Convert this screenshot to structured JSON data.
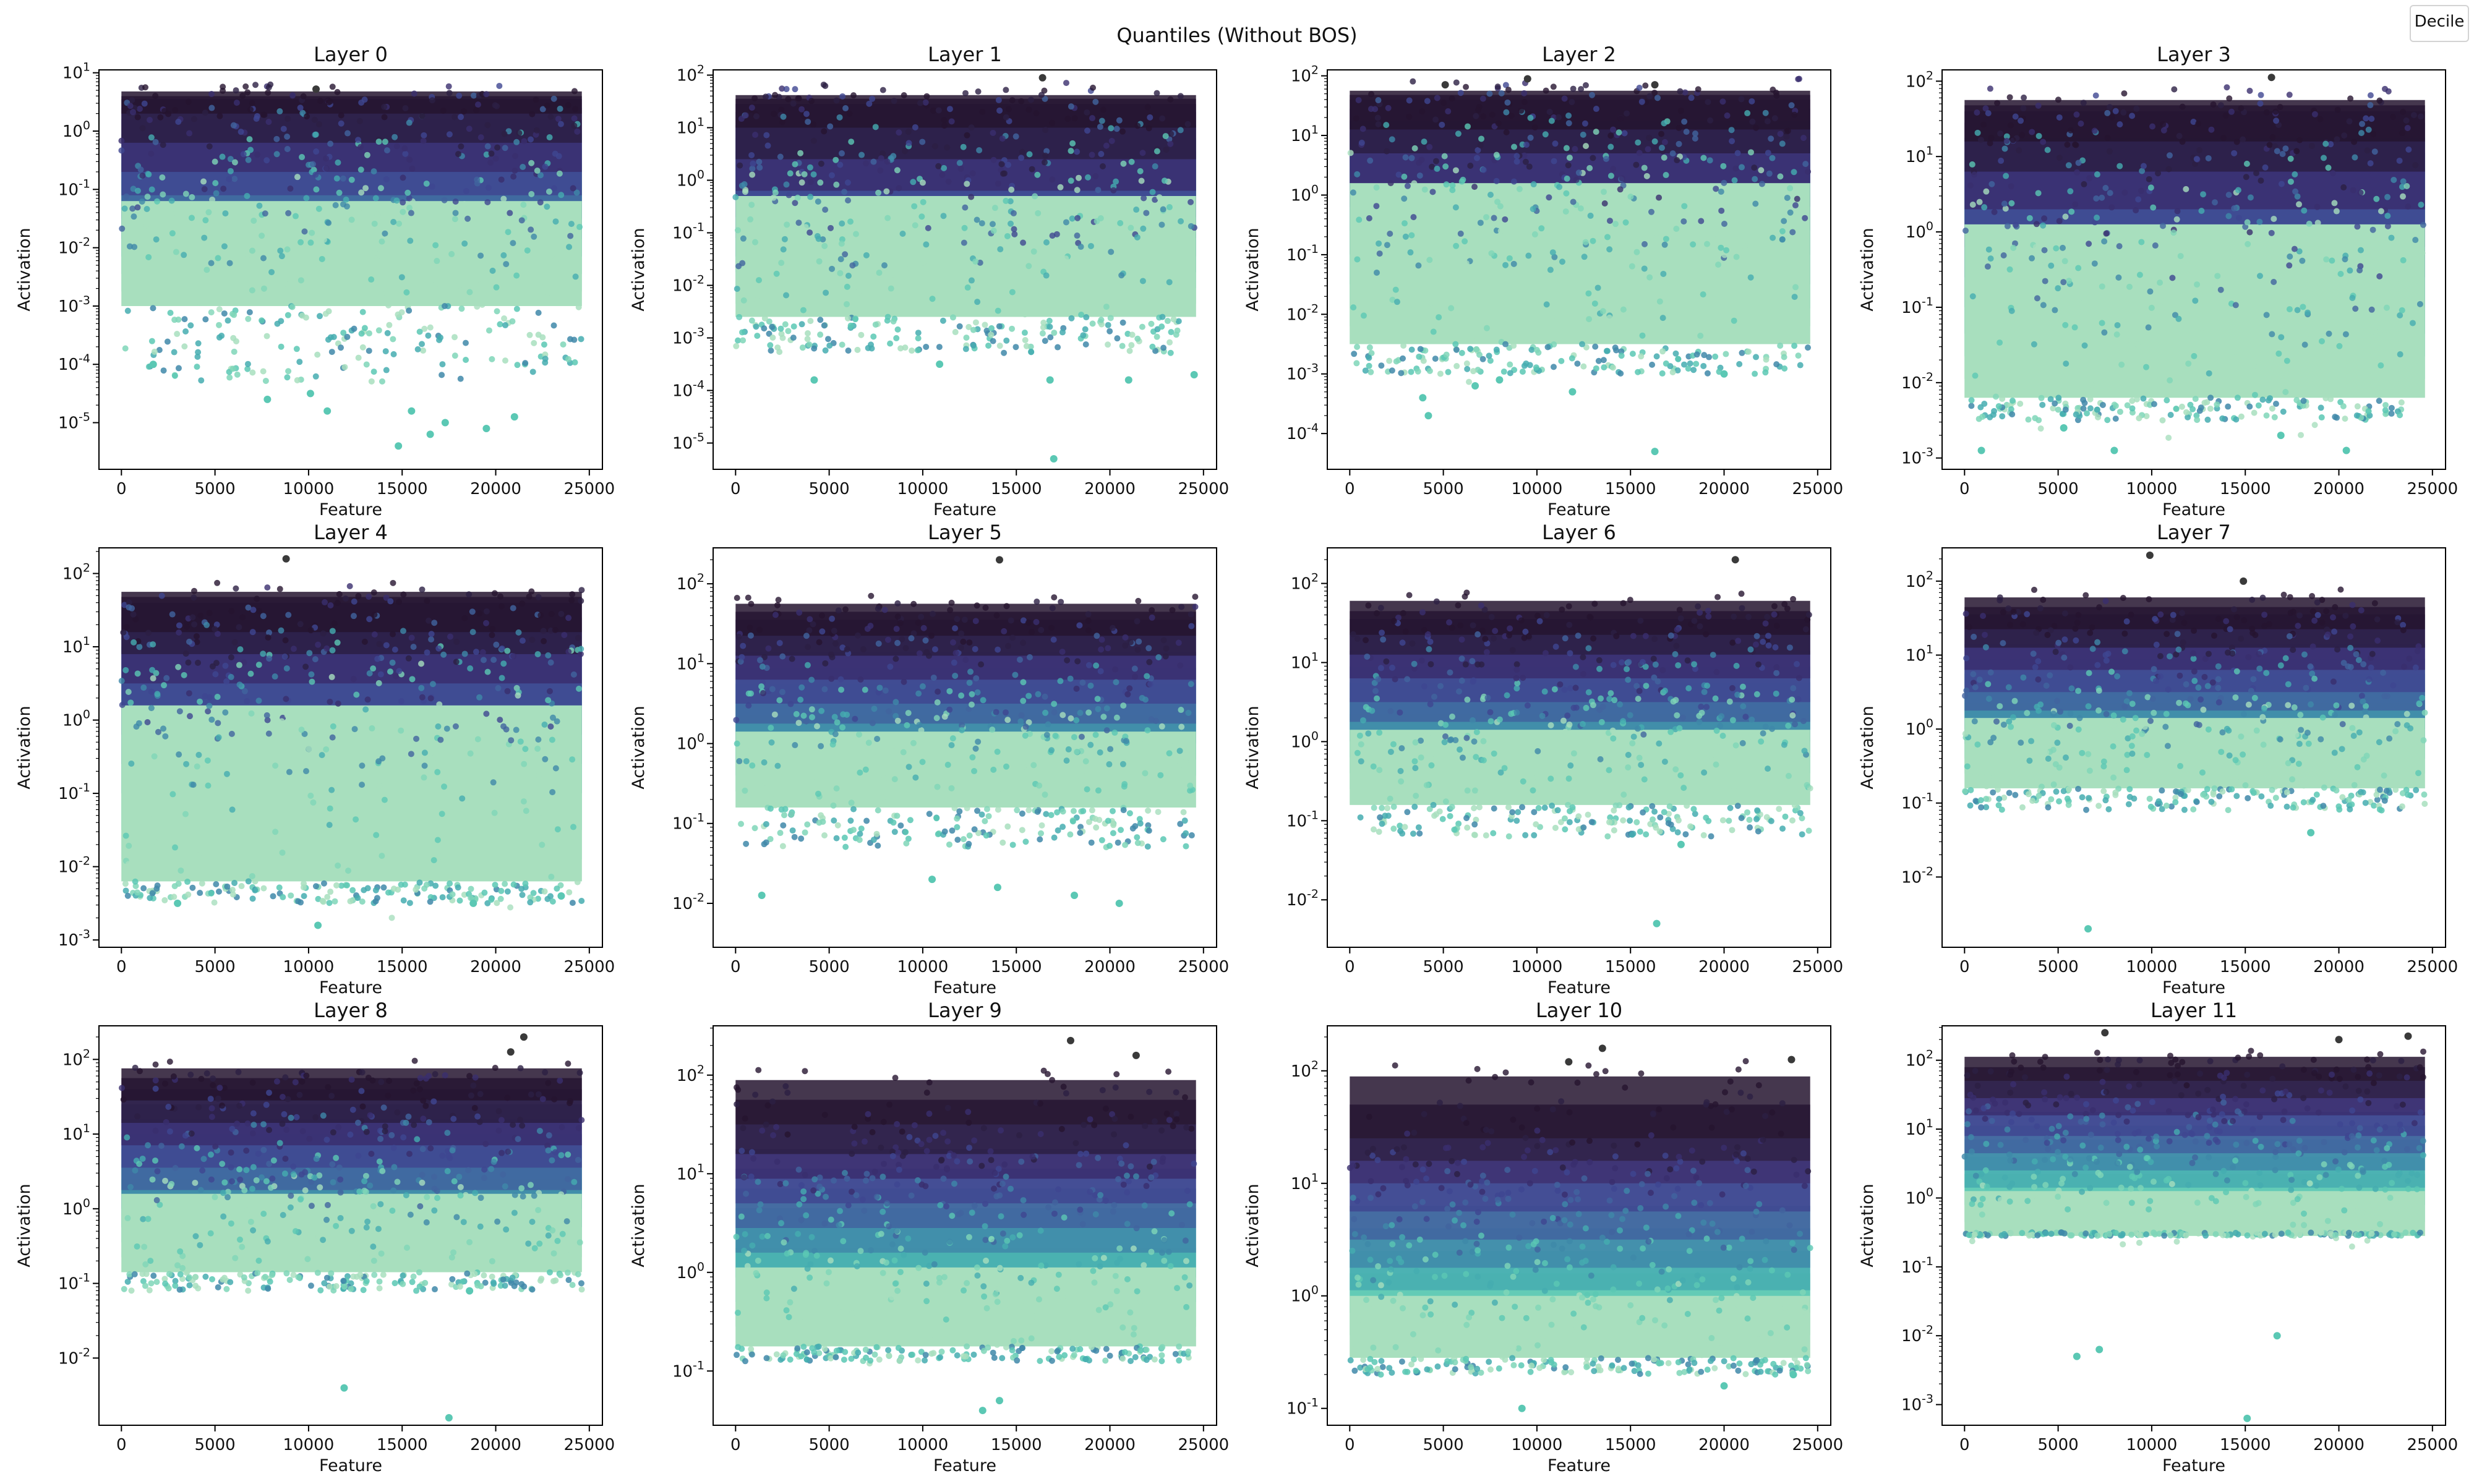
{
  "figure": {
    "suptitle": "Quantiles (Without BOS)",
    "legend_title": "Decile"
  },
  "colors": {
    "deciles": [
      "#a8dfbe",
      "#7fd6b8",
      "#5bc8b4",
      "#45adb0",
      "#3f88a9",
      "#41649f",
      "#3f4691",
      "#3a2e6e",
      "#2c1f44",
      "#25142f"
    ],
    "axes_edge": "#000000",
    "background": "#ffffff"
  },
  "chart_data": [
    {
      "type": "scatter",
      "title": "Layer 0",
      "xlabel": "Feature",
      "ylabel": "Activation",
      "yscale": "log",
      "xlim": [
        -1200,
        25700
      ],
      "xticks": [
        0,
        5000,
        10000,
        15000,
        20000,
        25000
      ],
      "xtick_labels": [
        "0",
        "5000",
        "10000",
        "15000",
        "20000",
        "25000"
      ],
      "ylim_exp": [
        -5.8,
        1.05
      ],
      "ytick_exps": [
        -5,
        -4,
        -3,
        -2,
        -1,
        0,
        1
      ],
      "ytick_labels": [
        "10^-5",
        "10^-4",
        "10^-3",
        "10^-2",
        "10^-1",
        "10^0",
        "10^1"
      ],
      "band_low_exp": [
        -3.0,
        -2.75,
        -2.45,
        -2.15,
        -1.85,
        -1.5,
        -1.1,
        -0.7,
        -0.2,
        0.3
      ],
      "band_high_exp": [
        -1.2,
        -0.85,
        -0.55,
        -0.3,
        -0.05,
        0.2,
        0.4,
        0.55,
        0.6,
        0.68
      ],
      "floor_exp": -4.3,
      "ceiling_exp": 0.7,
      "outliers_high": [
        [
          10400,
          0.72
        ]
      ],
      "outliers_low": [
        [
          1700,
          -4.0
        ],
        [
          7800,
          -4.6
        ],
        [
          10100,
          -4.5
        ],
        [
          11000,
          -4.8
        ],
        [
          14800,
          -5.4
        ],
        [
          15500,
          -4.8
        ],
        [
          16500,
          -5.2
        ],
        [
          17300,
          -5.0
        ],
        [
          19500,
          -5.1
        ],
        [
          21000,
          -4.9
        ]
      ]
    },
    {
      "type": "scatter",
      "title": "Layer 1",
      "xlabel": "Feature",
      "ylabel": "Activation",
      "yscale": "log",
      "xlim": [
        -1200,
        25700
      ],
      "xticks": [
        0,
        5000,
        10000,
        15000,
        20000,
        25000
      ],
      "xtick_labels": [
        "0",
        "5000",
        "10000",
        "15000",
        "20000",
        "25000"
      ],
      "ylim_exp": [
        -5.5,
        2.1
      ],
      "ytick_exps": [
        -5,
        -4,
        -3,
        -2,
        -1,
        0,
        1,
        2
      ],
      "ytick_labels": [
        "10^-5",
        "10^-4",
        "10^-3",
        "10^-2",
        "10^-1",
        "10^0",
        "10^1",
        "10^2"
      ],
      "band_low_exp": [
        -2.6,
        -2.35,
        -2.05,
        -1.75,
        -1.45,
        -1.1,
        -0.7,
        -0.2,
        0.4,
        1.0
      ],
      "band_high_exp": [
        -0.3,
        0.0,
        0.3,
        0.55,
        0.8,
        1.05,
        1.3,
        1.45,
        1.55,
        1.62
      ],
      "floor_exp": -3.3,
      "ceiling_exp": 1.65,
      "outliers_high": [
        [
          16400,
          1.95
        ]
      ],
      "outliers_low": [
        [
          4200,
          -3.8
        ],
        [
          10900,
          -3.5
        ],
        [
          16800,
          -3.8
        ],
        [
          17000,
          -5.3
        ],
        [
          21000,
          -3.8
        ],
        [
          24500,
          -3.7
        ]
      ]
    },
    {
      "type": "scatter",
      "title": "Layer 2",
      "xlabel": "Feature",
      "ylabel": "Activation",
      "yscale": "log",
      "xlim": [
        -1200,
        25700
      ],
      "xticks": [
        0,
        5000,
        10000,
        15000,
        20000,
        25000
      ],
      "xtick_labels": [
        "0",
        "5000",
        "10000",
        "15000",
        "20000",
        "25000"
      ],
      "ylim_exp": [
        -4.6,
        2.1
      ],
      "ytick_exps": [
        -4,
        -3,
        -2,
        -1,
        0,
        1,
        2
      ],
      "ytick_labels": [
        "10^-4",
        "10^-3",
        "10^-2",
        "10^-1",
        "10^0",
        "10^1",
        "10^2"
      ],
      "band_low_exp": [
        -2.5,
        -2.2,
        -1.9,
        -1.5,
        -1.0,
        -0.6,
        -0.2,
        0.2,
        0.7,
        1.1
      ],
      "band_high_exp": [
        0.2,
        0.45,
        0.65,
        0.85,
        1.05,
        1.25,
        1.45,
        1.6,
        1.68,
        1.75
      ],
      "floor_exp": -3.0,
      "ceiling_exp": 1.75,
      "outliers_high": [
        [
          9500,
          1.95
        ],
        [
          5100,
          1.85
        ],
        [
          16300,
          1.85
        ]
      ],
      "outliers_low": [
        [
          3900,
          -3.4
        ],
        [
          4200,
          -3.7
        ],
        [
          6700,
          -3.2
        ],
        [
          8000,
          -3.1
        ],
        [
          11900,
          -3.3
        ],
        [
          16300,
          -4.3
        ],
        [
          20000,
          -3.0
        ]
      ]
    },
    {
      "type": "scatter",
      "title": "Layer 3",
      "xlabel": "Feature",
      "ylabel": "Activation",
      "yscale": "log",
      "xlim": [
        -1200,
        25700
      ],
      "xticks": [
        0,
        5000,
        10000,
        15000,
        20000,
        25000
      ],
      "xtick_labels": [
        "0",
        "5000",
        "10000",
        "15000",
        "20000",
        "25000"
      ],
      "ylim_exp": [
        -3.15,
        2.15
      ],
      "ytick_exps": [
        -3,
        -2,
        -1,
        0,
        1,
        2
      ],
      "ytick_labels": [
        "10^-3",
        "10^-2",
        "10^-1",
        "10^0",
        "10^1",
        "10^2"
      ],
      "band_low_exp": [
        -2.2,
        -1.95,
        -1.65,
        -1.35,
        -1.0,
        -0.6,
        -0.2,
        0.3,
        0.8,
        1.2
      ],
      "band_high_exp": [
        0.1,
        0.35,
        0.6,
        0.85,
        1.05,
        1.25,
        1.45,
        1.6,
        1.68,
        1.75
      ],
      "floor_exp": -2.5,
      "ceiling_exp": 1.75,
      "outliers_high": [
        [
          16400,
          2.05
        ]
      ],
      "outliers_low": [
        [
          900,
          -2.9
        ],
        [
          5300,
          -2.6
        ],
        [
          8000,
          -2.9
        ],
        [
          16900,
          -2.7
        ],
        [
          20400,
          -2.9
        ]
      ]
    },
    {
      "type": "scatter",
      "title": "Layer 4",
      "xlabel": "Feature",
      "ylabel": "Activation",
      "yscale": "log",
      "xlim": [
        -1200,
        25700
      ],
      "xticks": [
        0,
        5000,
        10000,
        15000,
        20000,
        25000
      ],
      "xtick_labels": [
        "0",
        "5000",
        "10000",
        "15000",
        "20000",
        "25000"
      ],
      "ylim_exp": [
        -3.1,
        2.35
      ],
      "ytick_exps": [
        -3,
        -2,
        -1,
        0,
        1,
        2
      ],
      "ytick_labels": [
        "10^-3",
        "10^-2",
        "10^-1",
        "10^0",
        "10^1",
        "10^2"
      ],
      "band_low_exp": [
        -2.2,
        -1.9,
        -1.5,
        -1.0,
        -0.6,
        -0.2,
        0.2,
        0.5,
        0.9,
        1.2
      ],
      "band_high_exp": [
        0.2,
        0.4,
        0.6,
        0.8,
        1.0,
        1.2,
        1.4,
        1.6,
        1.68,
        1.75
      ],
      "floor_exp": -2.5,
      "ceiling_exp": 1.78,
      "outliers_high": [
        [
          8800,
          2.2
        ]
      ],
      "outliers_low": [
        [
          3000,
          -2.5
        ],
        [
          10500,
          -2.8
        ],
        [
          18800,
          -2.5
        ],
        [
          23500,
          -2.4
        ]
      ]
    },
    {
      "type": "scatter",
      "title": "Layer 5",
      "xlabel": "Feature",
      "ylabel": "Activation",
      "yscale": "log",
      "xlim": [
        -1200,
        25700
      ],
      "xticks": [
        0,
        5000,
        10000,
        15000,
        20000,
        25000
      ],
      "xtick_labels": [
        "0",
        "5000",
        "10000",
        "15000",
        "20000",
        "25000"
      ],
      "ylim_exp": [
        -2.55,
        2.45
      ],
      "ytick_exps": [
        -2,
        -1,
        0,
        1,
        2
      ],
      "ytick_labels": [
        "10^-2",
        "10^-1",
        "10^0",
        "10^1",
        "10^2"
      ],
      "band_low_exp": [
        -0.8,
        -0.6,
        -0.4,
        -0.2,
        0.0,
        0.25,
        0.5,
        0.8,
        1.1,
        1.35
      ],
      "band_high_exp": [
        0.15,
        0.35,
        0.55,
        0.75,
        0.95,
        1.15,
        1.35,
        1.55,
        1.65,
        1.75
      ],
      "floor_exp": -1.3,
      "ceiling_exp": 1.8,
      "outliers_high": [
        [
          14100,
          2.3
        ]
      ],
      "outliers_low": [
        [
          1400,
          -1.9
        ],
        [
          10500,
          -1.7
        ],
        [
          14000,
          -1.8
        ],
        [
          18100,
          -1.9
        ],
        [
          20500,
          -2.0
        ]
      ]
    },
    {
      "type": "scatter",
      "title": "Layer 6",
      "xlabel": "Feature",
      "ylabel": "Activation",
      "yscale": "log",
      "xlim": [
        -1200,
        25700
      ],
      "xticks": [
        0,
        5000,
        10000,
        15000,
        20000,
        25000
      ],
      "xtick_labels": [
        "0",
        "5000",
        "10000",
        "15000",
        "20000",
        "25000"
      ],
      "ylim_exp": [
        -2.6,
        2.45
      ],
      "ytick_exps": [
        -2,
        -1,
        0,
        1,
        2
      ],
      "ytick_labels": [
        "10^-2",
        "10^-1",
        "10^0",
        "10^1",
        "10^2"
      ],
      "band_low_exp": [
        -0.8,
        -0.6,
        -0.4,
        -0.2,
        0.0,
        0.25,
        0.5,
        0.8,
        1.1,
        1.35
      ],
      "band_high_exp": [
        0.15,
        0.35,
        0.55,
        0.75,
        0.95,
        1.15,
        1.35,
        1.55,
        1.65,
        1.78
      ],
      "floor_exp": -1.2,
      "ceiling_exp": 1.85,
      "outliers_high": [
        [
          20600,
          2.3
        ]
      ],
      "outliers_low": [
        [
          16400,
          -2.3
        ],
        [
          17700,
          -1.3
        ]
      ]
    },
    {
      "type": "scatter",
      "title": "Layer 7",
      "xlabel": "Feature",
      "ylabel": "Activation",
      "yscale": "log",
      "xlim": [
        -1200,
        25700
      ],
      "xticks": [
        0,
        5000,
        10000,
        15000,
        20000,
        25000
      ],
      "xtick_labels": [
        "0",
        "5000",
        "10000",
        "15000",
        "20000",
        "25000"
      ],
      "ylim_exp": [
        -2.95,
        2.45
      ],
      "ytick_exps": [
        -2,
        -1,
        0,
        1,
        2
      ],
      "ytick_labels": [
        "10^-2",
        "10^-1",
        "10^0",
        "10^1",
        "10^2"
      ],
      "band_low_exp": [
        -0.8,
        -0.6,
        -0.4,
        -0.2,
        0.0,
        0.25,
        0.5,
        0.8,
        1.1,
        1.35
      ],
      "band_high_exp": [
        0.15,
        0.35,
        0.55,
        0.75,
        0.95,
        1.15,
        1.35,
        1.55,
        1.65,
        1.78
      ],
      "floor_exp": -1.1,
      "ceiling_exp": 1.85,
      "outliers_high": [
        [
          9900,
          2.35
        ],
        [
          14900,
          2.0
        ]
      ],
      "outliers_low": [
        [
          6600,
          -2.7
        ],
        [
          18500,
          -1.4
        ]
      ]
    },
    {
      "type": "scatter",
      "title": "Layer 8",
      "xlabel": "Feature",
      "ylabel": "Activation",
      "yscale": "log",
      "xlim": [
        -1200,
        25700
      ],
      "xticks": [
        0,
        5000,
        10000,
        15000,
        20000,
        25000
      ],
      "xtick_labels": [
        "0",
        "5000",
        "10000",
        "15000",
        "20000",
        "25000"
      ],
      "ylim_exp": [
        -2.9,
        2.45
      ],
      "ytick_exps": [
        -2,
        -1,
        0,
        1,
        2
      ],
      "ytick_labels": [
        "10^-2",
        "10^-1",
        "10^0",
        "10^1",
        "10^2"
      ],
      "band_low_exp": [
        -0.85,
        -0.65,
        -0.45,
        -0.25,
        0.0,
        0.25,
        0.55,
        0.85,
        1.15,
        1.45
      ],
      "band_high_exp": [
        0.2,
        0.4,
        0.6,
        0.8,
        1.0,
        1.2,
        1.4,
        1.6,
        1.75,
        1.88
      ],
      "floor_exp": -1.1,
      "ceiling_exp": 1.95,
      "outliers_high": [
        [
          21500,
          2.3
        ],
        [
          20800,
          2.1
        ]
      ],
      "outliers_low": [
        [
          11900,
          -2.4
        ],
        [
          17500,
          -2.8
        ],
        [
          18600,
          -1.1
        ]
      ]
    },
    {
      "type": "scatter",
      "title": "Layer 9",
      "xlabel": "Feature",
      "ylabel": "Activation",
      "yscale": "log",
      "xlim": [
        -1200,
        25700
      ],
      "xticks": [
        0,
        5000,
        10000,
        15000,
        20000,
        25000
      ],
      "xtick_labels": [
        "0",
        "5000",
        "10000",
        "15000",
        "20000",
        "25000"
      ],
      "ylim_exp": [
        -1.55,
        2.5
      ],
      "ytick_exps": [
        -1,
        0,
        1,
        2
      ],
      "ytick_labels": [
        "10^-1",
        "10^0",
        "10^1",
        "10^2"
      ],
      "band_low_exp": [
        -0.75,
        -0.55,
        -0.3,
        -0.05,
        0.2,
        0.45,
        0.7,
        0.95,
        1.2,
        1.5
      ],
      "band_high_exp": [
        0.05,
        0.25,
        0.45,
        0.65,
        0.85,
        1.05,
        1.25,
        1.5,
        1.75,
        1.95
      ],
      "floor_exp": -0.9,
      "ceiling_exp": 2.0,
      "outliers_high": [
        [
          17900,
          2.35
        ],
        [
          21400,
          2.2
        ]
      ],
      "outliers_low": [
        [
          13200,
          -1.4
        ],
        [
          14100,
          -1.3
        ]
      ]
    },
    {
      "type": "scatter",
      "title": "Layer 10",
      "xlabel": "Feature",
      "ylabel": "Activation",
      "yscale": "log",
      "xlim": [
        -1200,
        25700
      ],
      "xticks": [
        0,
        5000,
        10000,
        15000,
        20000,
        25000
      ],
      "xtick_labels": [
        "0",
        "5000",
        "10000",
        "15000",
        "20000",
        "25000"
      ],
      "ylim_exp": [
        -1.15,
        2.4
      ],
      "ytick_exps": [
        -1,
        0,
        1,
        2
      ],
      "ytick_labels": [
        "10^-1",
        "10^0",
        "10^1",
        "10^2"
      ],
      "band_low_exp": [
        -0.55,
        -0.35,
        -0.15,
        0.05,
        0.25,
        0.5,
        0.75,
        1.0,
        1.2,
        1.4
      ],
      "band_high_exp": [
        0.0,
        0.2,
        0.4,
        0.6,
        0.8,
        1.0,
        1.2,
        1.4,
        1.7,
        1.95
      ],
      "floor_exp": -0.7,
      "ceiling_exp": 2.0,
      "outliers_high": [
        [
          13500,
          2.2
        ],
        [
          11700,
          2.08
        ],
        [
          23600,
          2.1
        ]
      ],
      "outliers_low": [
        [
          9200,
          -1.0
        ],
        [
          20000,
          -0.8
        ],
        [
          23700,
          -0.7
        ]
      ]
    },
    {
      "type": "scatter",
      "title": "Layer 11",
      "xlabel": "Feature",
      "ylabel": "Activation",
      "yscale": "log",
      "xlim": [
        -1200,
        25700
      ],
      "xticks": [
        0,
        5000,
        10000,
        15000,
        20000,
        25000
      ],
      "xtick_labels": [
        "0",
        "5000",
        "10000",
        "15000",
        "20000",
        "25000"
      ],
      "ylim_exp": [
        -3.3,
        2.5
      ],
      "ytick_exps": [
        -3,
        -2,
        -1,
        0,
        1,
        2
      ],
      "ytick_labels": [
        "10^-3",
        "10^-2",
        "10^-1",
        "10^0",
        "10^1",
        "10^2"
      ],
      "band_low_exp": [
        -0.55,
        -0.35,
        -0.1,
        0.15,
        0.4,
        0.65,
        0.9,
        1.2,
        1.45,
        1.7
      ],
      "band_high_exp": [
        0.1,
        0.35,
        0.6,
        0.85,
        1.05,
        1.25,
        1.45,
        1.7,
        1.9,
        2.05
      ],
      "floor_exp": -0.5,
      "ceiling_exp": 2.1,
      "outliers_high": [
        [
          7500,
          2.4
        ],
        [
          20000,
          2.3
        ],
        [
          23700,
          2.35
        ]
      ],
      "outliers_low": [
        [
          15100,
          -3.2
        ],
        [
          6000,
          -2.3
        ],
        [
          7200,
          -2.2
        ],
        [
          16700,
          -2.0
        ]
      ]
    }
  ]
}
